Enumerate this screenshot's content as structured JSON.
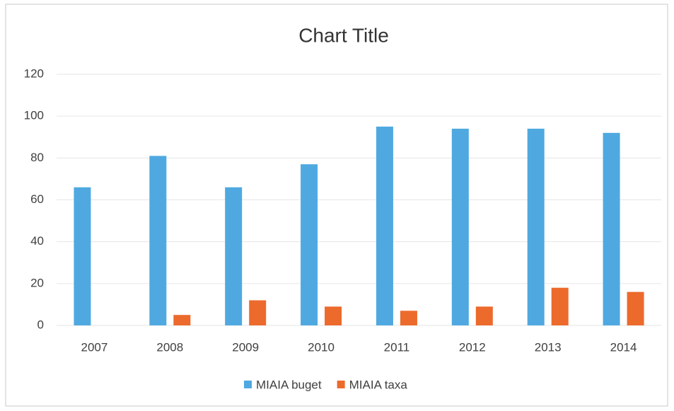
{
  "chart_data": {
    "type": "bar",
    "title": "Chart Title",
    "categories": [
      "2007",
      "2008",
      "2009",
      "2010",
      "2011",
      "2012",
      "2013",
      "2014"
    ],
    "series": [
      {
        "name": "MIAIA buget",
        "color": "#4fa9e0",
        "values": [
          66,
          81,
          66,
          77,
          95,
          94,
          94,
          92
        ]
      },
      {
        "name": "MIAIA taxa",
        "color": "#ec6a2c",
        "values": [
          0,
          5,
          12,
          9,
          7,
          9,
          18,
          16
        ]
      }
    ],
    "ylim": [
      0,
      120
    ],
    "yticks": [
      0,
      20,
      40,
      60,
      80,
      100,
      120
    ],
    "grid": true,
    "legend": "bottom"
  }
}
